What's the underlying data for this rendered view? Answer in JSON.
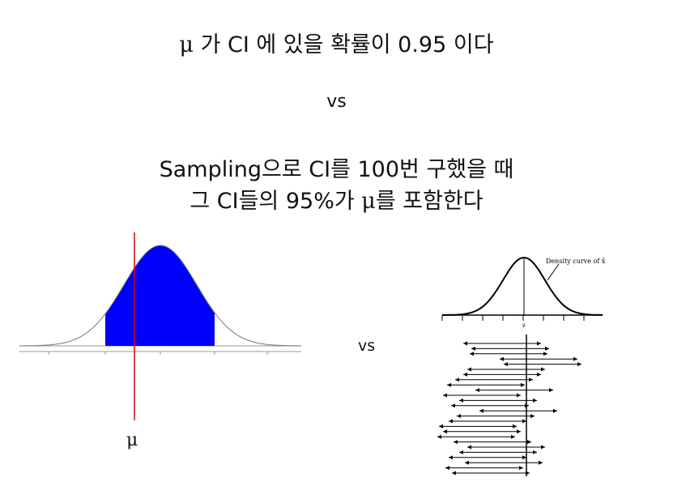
{
  "slide": {
    "line1": {
      "mu": "μ",
      "text": " 가 CI 에 있을 확률이 0.95 이다"
    },
    "vs_top": "vs",
    "line3": "Sampling으로 CI를 100번 구했을 때",
    "line4": {
      "before": "그 CI들의 95%가 ",
      "mu": "μ",
      "after": "를 포함한다"
    },
    "vs_middle": "vs"
  },
  "left_figure": {
    "mu_label": "μ",
    "fill_color": "#0000ff",
    "mu_line_color": "#dd0000"
  },
  "right_figure": {
    "curve_label": "Density curve of x̄",
    "mu_tick_label": "μ",
    "interval_count": 26
  }
}
